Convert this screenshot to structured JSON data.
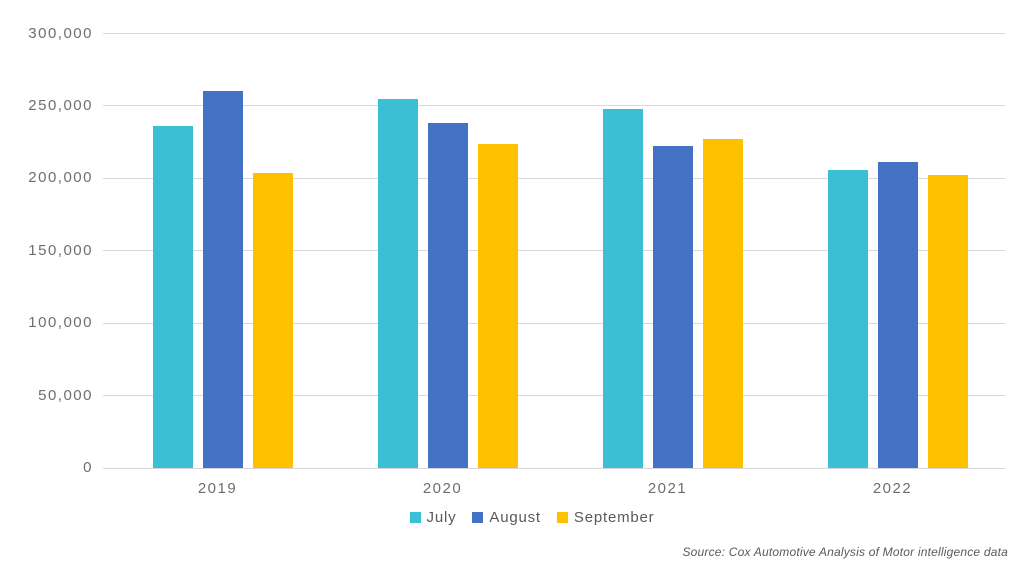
{
  "chart_data": {
    "type": "bar",
    "title": "",
    "categories": [
      "2019",
      "2020",
      "2021",
      "2022"
    ],
    "series": [
      {
        "name": "July",
        "color": "#3BBFD4",
        "values": [
          236000,
          255000,
          248000,
          206000
        ]
      },
      {
        "name": "August",
        "color": "#4472C4",
        "values": [
          260000,
          238000,
          222000,
          211000
        ]
      },
      {
        "name": "September",
        "color": "#FFC000",
        "values": [
          204000,
          224000,
          227000,
          202000
        ]
      }
    ],
    "ylim": [
      0,
      300000
    ],
    "yticks": [
      0,
      50000,
      100000,
      150000,
      200000,
      250000,
      300000
    ],
    "yticklabels": [
      "0",
      "50,000",
      "100,000",
      "150,000",
      "200,000",
      "250,000",
      "300,000"
    ],
    "xlabel": "",
    "ylabel": "",
    "grid": true,
    "legend_position": "bottom"
  },
  "source_note": "Source: Cox Automotive Analysis of Motor intelligence data",
  "colors": {
    "background": "#FFFFFF",
    "gridline": "#D9D9D9",
    "axis_text": "#6E6E6E",
    "legend_text": "#595959"
  }
}
